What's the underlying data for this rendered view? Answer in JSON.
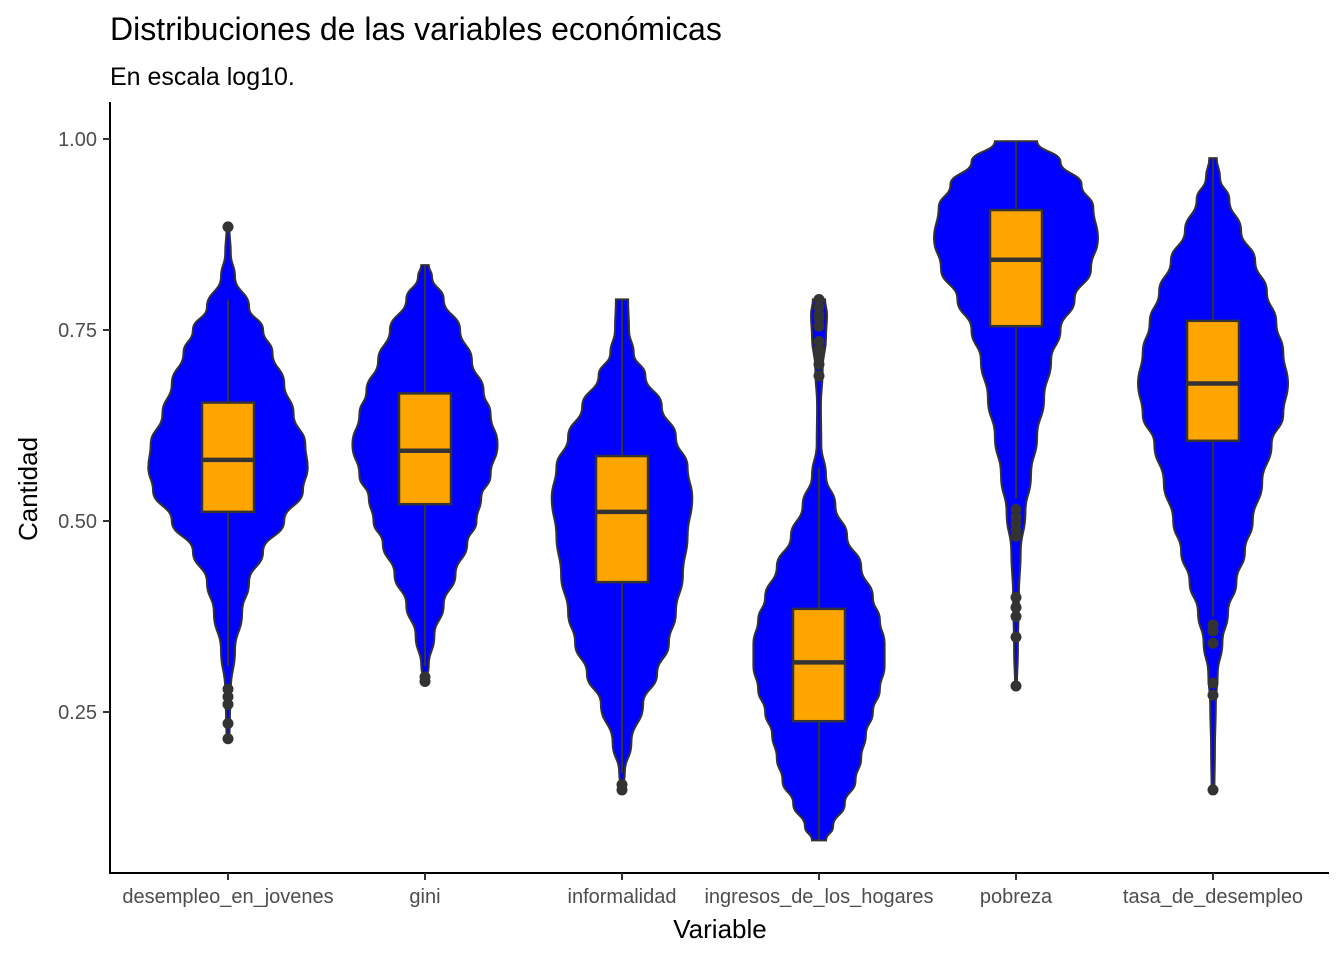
{
  "chart_data": {
    "type": "violin",
    "title": "Distribuciones de las variables económicas",
    "subtitle": "En escala log10.",
    "xlabel": "Variable",
    "ylabel": "Cantidad",
    "ylim": [
      0.08,
      1.0
    ],
    "yticks": [
      0.25,
      0.5,
      0.75,
      1.0
    ],
    "ytick_labels": [
      "0.25",
      "0.50",
      "0.75",
      "1.00"
    ],
    "grid": false,
    "legend": "none",
    "categories": [
      "desempleo_en_jovenes",
      "gini",
      "informalidad",
      "ingresos_de_los_hogares",
      "pobreza",
      "tasa_de_desempleo"
    ],
    "colors": {
      "violin_fill": "#0000ff",
      "box_fill": "#ffa500",
      "line": "#333333"
    },
    "violins": [
      {
        "name": "desempleo_en_jovenes",
        "range": [
          0.215,
          0.885
        ],
        "density": [
          [
            0.215,
            0.003
          ],
          [
            0.24,
            0.004
          ],
          [
            0.28,
            0.006
          ],
          [
            0.33,
            0.015
          ],
          [
            0.38,
            0.03
          ],
          [
            0.42,
            0.045
          ],
          [
            0.46,
            0.075
          ],
          [
            0.5,
            0.12
          ],
          [
            0.54,
            0.16
          ],
          [
            0.57,
            0.17
          ],
          [
            0.6,
            0.165
          ],
          [
            0.64,
            0.14
          ],
          [
            0.68,
            0.12
          ],
          [
            0.72,
            0.095
          ],
          [
            0.75,
            0.075
          ],
          [
            0.78,
            0.045
          ],
          [
            0.82,
            0.015
          ],
          [
            0.85,
            0.006
          ],
          [
            0.885,
            0.003
          ]
        ],
        "box": {
          "q1": 0.512,
          "median": 0.58,
          "q3": 0.655,
          "whisker_low": 0.31,
          "whisker_high": 0.79
        },
        "outliers": [
          0.215,
          0.235,
          0.26,
          0.27,
          0.28,
          0.885
        ]
      },
      {
        "name": "gini",
        "range": [
          0.29,
          0.835
        ],
        "density": [
          [
            0.29,
            0.003
          ],
          [
            0.31,
            0.008
          ],
          [
            0.35,
            0.02
          ],
          [
            0.39,
            0.04
          ],
          [
            0.43,
            0.065
          ],
          [
            0.47,
            0.09
          ],
          [
            0.5,
            0.11
          ],
          [
            0.53,
            0.12
          ],
          [
            0.56,
            0.14
          ],
          [
            0.6,
            0.155
          ],
          [
            0.64,
            0.14
          ],
          [
            0.67,
            0.125
          ],
          [
            0.71,
            0.1
          ],
          [
            0.75,
            0.075
          ],
          [
            0.79,
            0.04
          ],
          [
            0.82,
            0.015
          ],
          [
            0.835,
            0.008
          ]
        ],
        "box": {
          "q1": 0.522,
          "median": 0.592,
          "q3": 0.667,
          "whisker_low": 0.31,
          "whisker_high": 0.835
        },
        "outliers": [
          0.29,
          0.296
        ]
      },
      {
        "name": "informalidad",
        "range": [
          0.148,
          0.79
        ],
        "density": [
          [
            0.148,
            0.002
          ],
          [
            0.17,
            0.006
          ],
          [
            0.21,
            0.02
          ],
          [
            0.26,
            0.045
          ],
          [
            0.3,
            0.075
          ],
          [
            0.34,
            0.1
          ],
          [
            0.38,
            0.115
          ],
          [
            0.43,
            0.13
          ],
          [
            0.48,
            0.14
          ],
          [
            0.53,
            0.15
          ],
          [
            0.57,
            0.14
          ],
          [
            0.61,
            0.115
          ],
          [
            0.65,
            0.085
          ],
          [
            0.69,
            0.05
          ],
          [
            0.72,
            0.025
          ],
          [
            0.75,
            0.015
          ],
          [
            0.79,
            0.013
          ]
        ],
        "box": {
          "q1": 0.42,
          "median": 0.512,
          "q3": 0.585,
          "whisker_low": 0.17,
          "whisker_high": 0.79
        },
        "outliers": [
          0.148,
          0.155
        ]
      },
      {
        "name": "ingresos_de_los_hogares",
        "range": [
          0.082,
          0.79
        ],
        "density": [
          [
            0.082,
            0.015
          ],
          [
            0.1,
            0.03
          ],
          [
            0.13,
            0.055
          ],
          [
            0.16,
            0.078
          ],
          [
            0.19,
            0.09
          ],
          [
            0.22,
            0.1
          ],
          [
            0.25,
            0.115
          ],
          [
            0.28,
            0.13
          ],
          [
            0.31,
            0.14
          ],
          [
            0.34,
            0.14
          ],
          [
            0.37,
            0.13
          ],
          [
            0.4,
            0.115
          ],
          [
            0.44,
            0.09
          ],
          [
            0.48,
            0.06
          ],
          [
            0.52,
            0.035
          ],
          [
            0.56,
            0.015
          ],
          [
            0.6,
            0.005
          ],
          [
            0.65,
            0.004
          ],
          [
            0.7,
            0.008
          ],
          [
            0.74,
            0.015
          ],
          [
            0.77,
            0.017
          ],
          [
            0.79,
            0.013
          ]
        ],
        "box": {
          "q1": 0.238,
          "median": 0.315,
          "q3": 0.385,
          "whisker_low": 0.082,
          "whisker_high": 0.57
        },
        "outliers": [
          0.69,
          0.705,
          0.715,
          0.725,
          0.735,
          0.755,
          0.765,
          0.77,
          0.78,
          0.79
        ]
      },
      {
        "name": "pobreza",
        "range": [
          0.284,
          0.997
        ],
        "density": [
          [
            0.284,
            0.002
          ],
          [
            0.33,
            0.004
          ],
          [
            0.4,
            0.006
          ],
          [
            0.46,
            0.01
          ],
          [
            0.51,
            0.02
          ],
          [
            0.56,
            0.032
          ],
          [
            0.61,
            0.045
          ],
          [
            0.66,
            0.06
          ],
          [
            0.71,
            0.075
          ],
          [
            0.75,
            0.095
          ],
          [
            0.79,
            0.125
          ],
          [
            0.83,
            0.16
          ],
          [
            0.87,
            0.175
          ],
          [
            0.91,
            0.165
          ],
          [
            0.94,
            0.14
          ],
          [
            0.97,
            0.095
          ],
          [
            0.997,
            0.045
          ]
        ],
        "box": {
          "q1": 0.755,
          "median": 0.842,
          "q3": 0.907,
          "whisker_low": 0.53,
          "whisker_high": 0.997
        },
        "outliers": [
          0.284,
          0.348,
          0.375,
          0.387,
          0.4,
          0.48,
          0.488,
          0.497,
          0.505,
          0.515
        ]
      },
      {
        "name": "tasa_de_desempleo",
        "range": [
          0.148,
          0.975
        ],
        "density": [
          [
            0.148,
            0.003
          ],
          [
            0.2,
            0.004
          ],
          [
            0.26,
            0.006
          ],
          [
            0.3,
            0.01
          ],
          [
            0.34,
            0.02
          ],
          [
            0.38,
            0.032
          ],
          [
            0.42,
            0.05
          ],
          [
            0.46,
            0.068
          ],
          [
            0.5,
            0.085
          ],
          [
            0.55,
            0.105
          ],
          [
            0.6,
            0.125
          ],
          [
            0.64,
            0.15
          ],
          [
            0.68,
            0.16
          ],
          [
            0.72,
            0.15
          ],
          [
            0.76,
            0.135
          ],
          [
            0.8,
            0.115
          ],
          [
            0.84,
            0.09
          ],
          [
            0.88,
            0.06
          ],
          [
            0.92,
            0.035
          ],
          [
            0.95,
            0.015
          ],
          [
            0.975,
            0.008
          ]
        ],
        "box": {
          "q1": 0.605,
          "median": 0.68,
          "q3": 0.762,
          "whisker_low": 0.375,
          "whisker_high": 0.975
        },
        "outliers": [
          0.148,
          0.272,
          0.288,
          0.34,
          0.356,
          0.364
        ]
      }
    ]
  }
}
